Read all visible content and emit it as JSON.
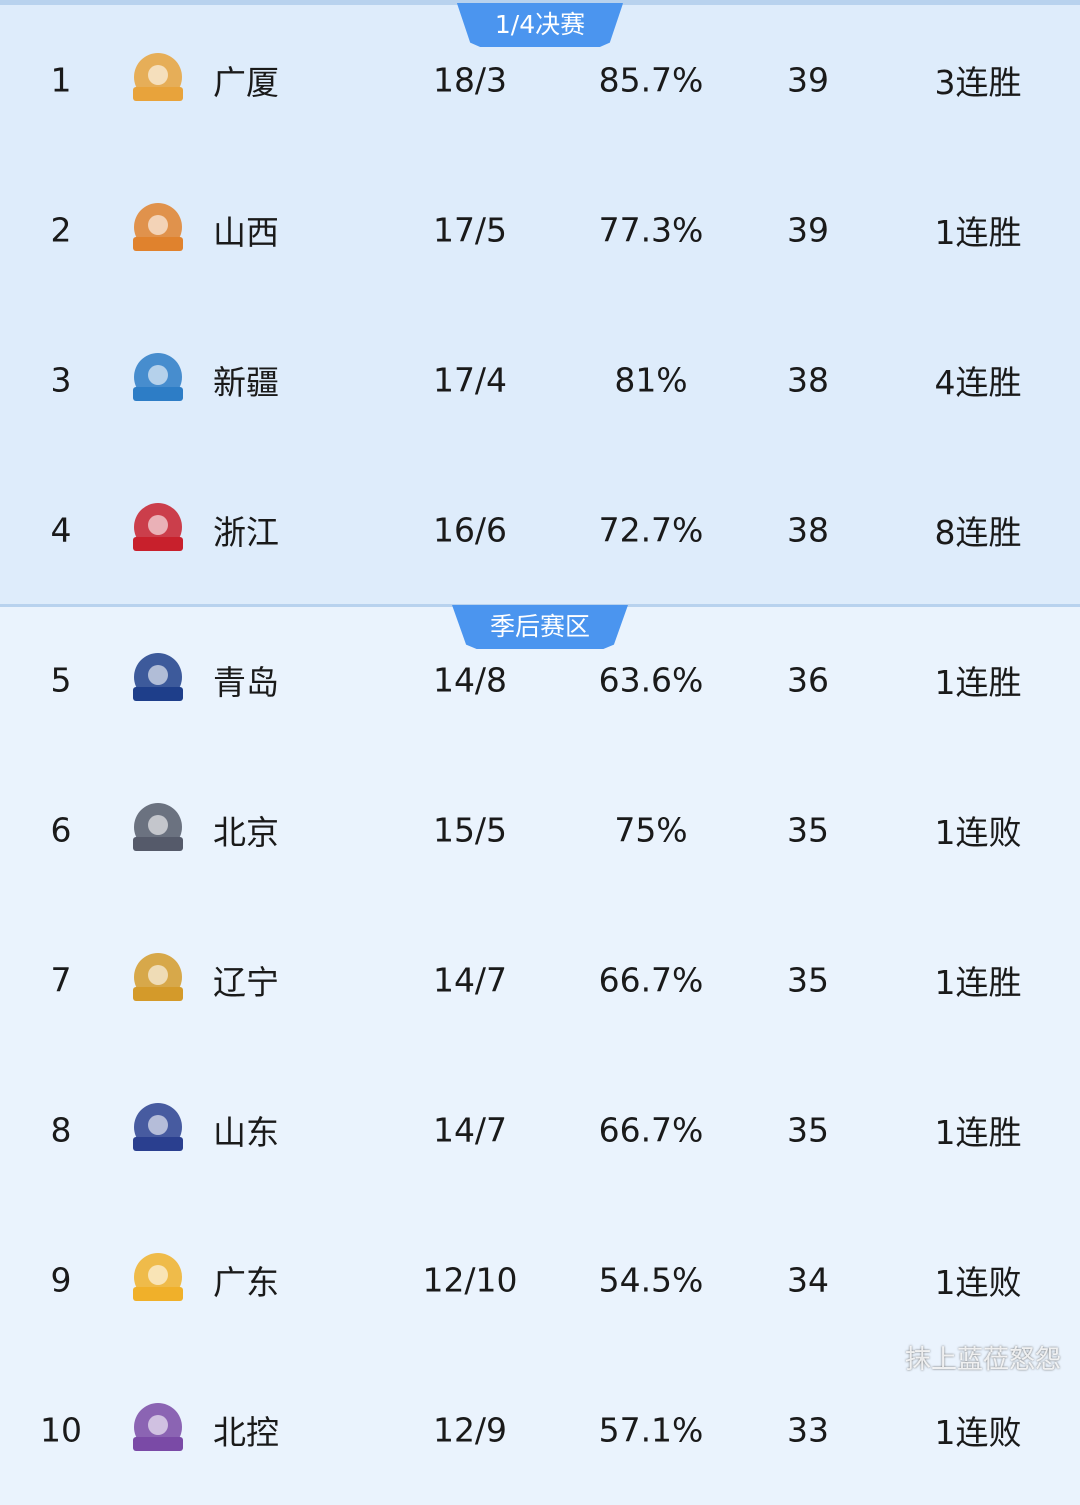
{
  "sections": [
    {
      "label": "1/4决赛"
    },
    {
      "label": "季后赛区"
    }
  ],
  "teams": [
    {
      "rank": "1",
      "name": "广厦",
      "record": "18/3",
      "pct": "85.7%",
      "points": "39",
      "streak": "3连胜",
      "logo": "lion-logo",
      "color": "#e8a33b"
    },
    {
      "rank": "2",
      "name": "山西",
      "record": "17/5",
      "pct": "77.3%",
      "points": "39",
      "streak": "1连胜",
      "logo": "basketball-logo",
      "color": "#e0822d"
    },
    {
      "rank": "3",
      "name": "新疆",
      "record": "17/4",
      "pct": "81%",
      "points": "38",
      "streak": "4连胜",
      "logo": "tiger-logo",
      "color": "#2d7dc6"
    },
    {
      "rank": "4",
      "name": "浙江",
      "record": "16/6",
      "pct": "72.7%",
      "points": "38",
      "streak": "8连胜",
      "logo": "bull-logo",
      "color": "#c8202c"
    },
    {
      "rank": "5",
      "name": "青岛",
      "record": "14/8",
      "pct": "63.6%",
      "points": "36",
      "streak": "1连胜",
      "logo": "eagle-logo",
      "color": "#1e3e8a"
    },
    {
      "rank": "6",
      "name": "北京",
      "record": "15/5",
      "pct": "75%",
      "points": "35",
      "streak": "1连败",
      "logo": "ducks-logo",
      "color": "#555a6a"
    },
    {
      "rank": "7",
      "name": "辽宁",
      "record": "14/7",
      "pct": "66.7%",
      "points": "35",
      "streak": "1连胜",
      "logo": "leopard-logo",
      "color": "#d49a2a"
    },
    {
      "rank": "8",
      "name": "山东",
      "record": "14/7",
      "pct": "66.7%",
      "points": "35",
      "streak": "1连胜",
      "logo": "dragon-logo",
      "color": "#2a3f8f"
    },
    {
      "rank": "9",
      "name": "广东",
      "record": "12/10",
      "pct": "54.5%",
      "points": "34",
      "streak": "1连败",
      "logo": "tiger-head-logo",
      "color": "#f0b02a"
    },
    {
      "rank": "10",
      "name": "北控",
      "record": "12/9",
      "pct": "57.1%",
      "points": "33",
      "streak": "1连败",
      "logo": "fighters-logo",
      "color": "#7a4aa6"
    }
  ],
  "watermark": "抹上蓝莅怒怨"
}
